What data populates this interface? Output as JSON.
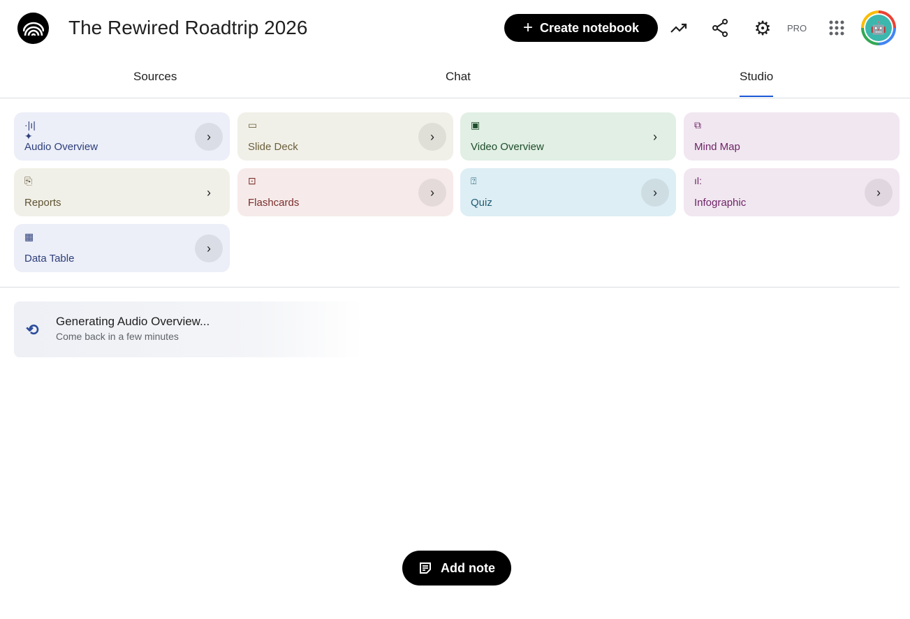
{
  "header": {
    "title": "The Rewired Roadtrip 2026",
    "create_label": "Create notebook",
    "pro_label": "PRO"
  },
  "tabs": [
    {
      "label": "Sources"
    },
    {
      "label": "Chat"
    },
    {
      "label": "Studio",
      "active": true
    }
  ],
  "studio": {
    "cards": [
      {
        "label": "Audio Overview",
        "icon": "audio-waveform-sparkle-icon",
        "bg": "#eceef8",
        "color": "#2d3f7a"
      },
      {
        "label": "Slide Deck",
        "icon": "slides-icon",
        "bg": "#f1f0e8",
        "color": "#6b5e3c"
      },
      {
        "label": "Video Overview",
        "icon": "video-icon",
        "bg": "#e1efe4",
        "color": "#1f4d2c"
      },
      {
        "label": "Mind Map",
        "icon": "mind-map-icon",
        "bg": "#f1e7f0",
        "color": "#6e2467"
      },
      {
        "label": "Reports",
        "icon": "reports-icon",
        "bg": "#f1f0e8",
        "color": "#5e5333"
      },
      {
        "label": "Flashcards",
        "icon": "flashcards-icon",
        "bg": "#f6ebea",
        "color": "#7a2e2b"
      },
      {
        "label": "Quiz",
        "icon": "quiz-icon",
        "bg": "#ddeef4",
        "color": "#1e5a72"
      },
      {
        "label": "Infographic",
        "icon": "infographic-icon",
        "bg": "#f1e7f0",
        "color": "#6e2467"
      },
      {
        "label": "Data Table",
        "icon": "data-table-icon",
        "bg": "#eceef8",
        "color": "#2d3f7a"
      }
    ],
    "generating": {
      "title": "Generating Audio Overview...",
      "subtitle": "Come back in a few minutes"
    },
    "add_note_label": "Add note"
  }
}
